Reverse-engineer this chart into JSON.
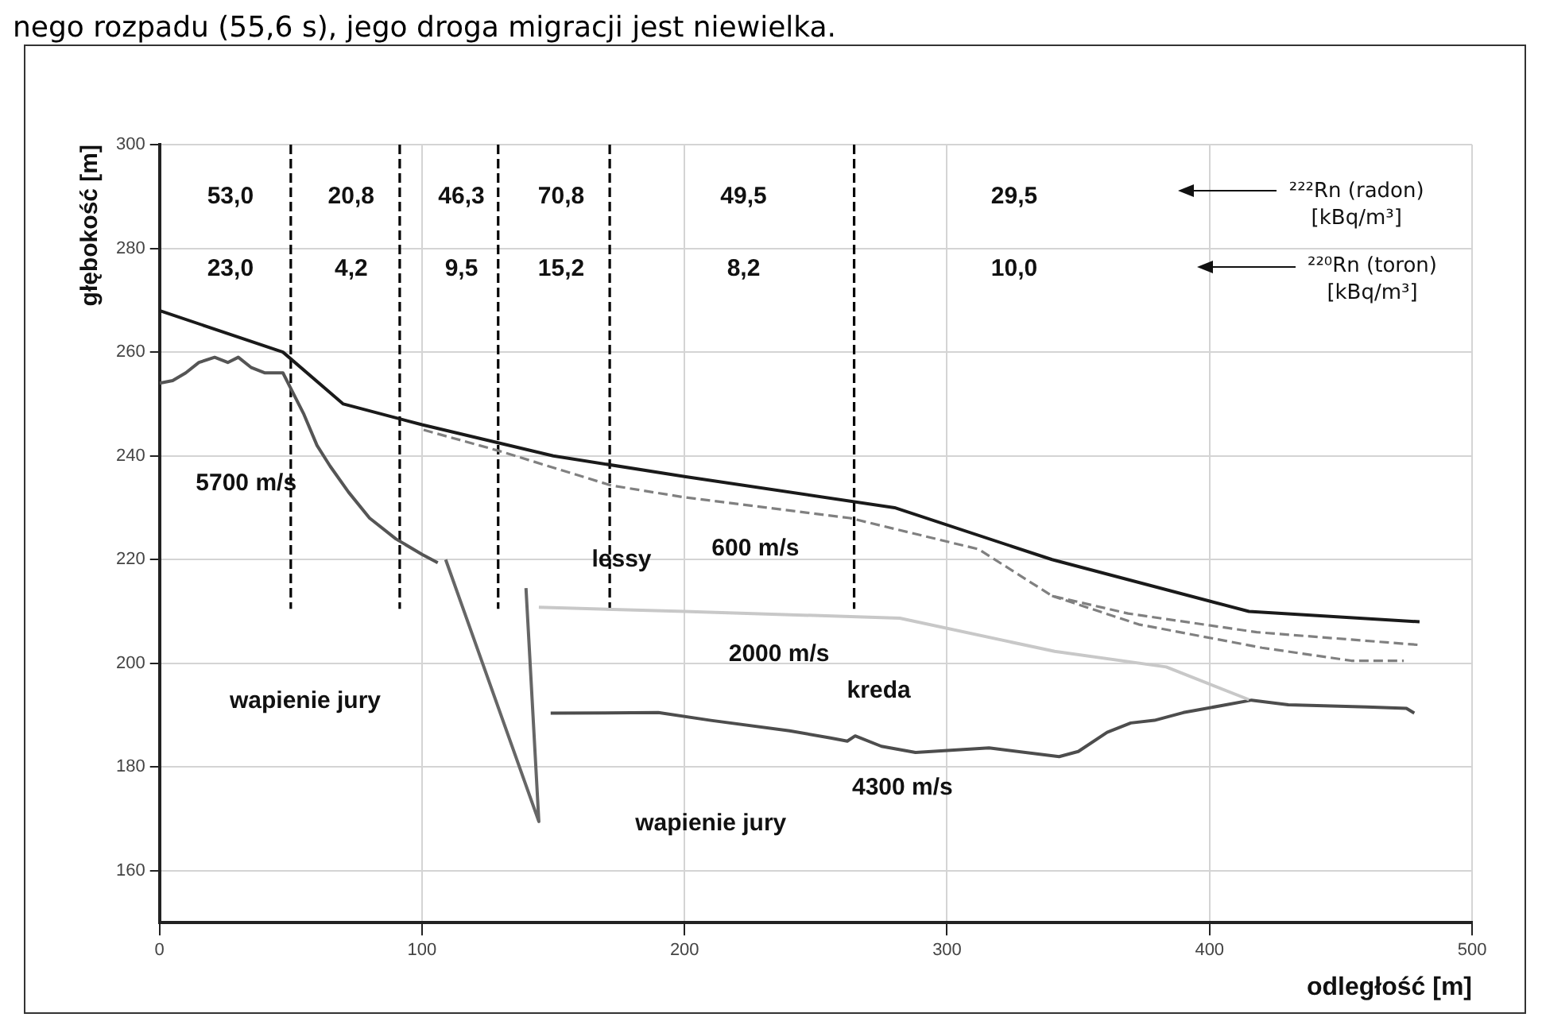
{
  "chart_data": {
    "type": "line",
    "xlabel": "odległość [m]",
    "ylabel": "głębokość [m]",
    "xlim": [
      0,
      500
    ],
    "ylim": [
      150,
      300
    ],
    "xticks": [
      0,
      100,
      200,
      300,
      400,
      500
    ],
    "yticks": [
      160,
      180,
      200,
      220,
      240,
      260,
      280,
      300
    ],
    "grid": true,
    "marker": "none",
    "legend": false,
    "series": [
      {
        "color": "#1a1a1a",
        "x": [
          0,
          47,
          70,
          100,
          150,
          200,
          280,
          340,
          415,
          480
        ],
        "values": [
          268,
          260,
          250,
          246,
          240,
          236,
          230,
          220,
          210,
          208
        ]
      },
      {
        "color": "#555555",
        "x": [
          0,
          5,
          10,
          15,
          21,
          26,
          30,
          35,
          40,
          47,
          50,
          55,
          60,
          65,
          72,
          80,
          90,
          100,
          106
        ],
        "values": [
          254,
          254.5,
          256,
          258,
          259,
          258,
          259,
          257,
          256,
          256,
          253,
          248,
          242,
          238,
          233,
          228,
          224,
          221,
          219.4
        ]
      },
      {
        "color": "#666666",
        "x": [
          109,
          144.5,
          139.6
        ],
        "values": [
          220,
          169.5,
          214.5
        ]
      },
      {
        "color": "#c8c8c8",
        "x": [
          144.5,
          200,
          282,
          341,
          383.5,
          415
        ],
        "values": [
          210.8,
          210,
          208.7,
          202.3,
          199.3,
          193
        ]
      },
      {
        "color": "#4d4d4d",
        "x": [
          149,
          190,
          210,
          240,
          255.6,
          262,
          265,
          275,
          288,
          316,
          342.7,
          350,
          361,
          370,
          379,
          390,
          397.6,
          416,
          430,
          460,
          475,
          478
        ],
        "values": [
          190.4,
          190.5,
          189,
          187,
          185.6,
          185,
          186,
          184,
          182.8,
          183.7,
          182,
          183,
          186.7,
          188.5,
          189,
          190.5,
          191.2,
          192.9,
          192,
          191.6,
          191.3,
          190.4
        ]
      },
      {
        "color": "#808080",
        "line_style": "dashed",
        "x": [
          100.6,
          129,
          172,
          200,
          263,
          312,
          340,
          369,
          418,
          481
        ],
        "values": [
          245,
          241,
          234.3,
          232,
          228,
          222,
          213,
          209.6,
          206,
          203.5
        ]
      },
      {
        "color": "#808080",
        "line_style": "dashed",
        "x": [
          340,
          373,
          420,
          454,
          474
        ],
        "values": [
          213,
          207.5,
          203,
          200.5,
          200.5
        ]
      },
      {
        "color": "#000000",
        "line_style": "dashed",
        "x": [
          50,
          50
        ],
        "values": [
          300,
          210.5
        ]
      },
      {
        "color": "#000000",
        "line_style": "dashed",
        "x": [
          91.5,
          91.5
        ],
        "values": [
          300,
          210.5
        ]
      },
      {
        "color": "#000000",
        "line_style": "dashed",
        "x": [
          129,
          129
        ],
        "values": [
          300,
          210.5
        ]
      },
      {
        "color": "#000000",
        "line_style": "dashed",
        "x": [
          171.5,
          171.5
        ],
        "values": [
          300,
          210.5
        ]
      },
      {
        "color": "#000000",
        "line_style": "dashed",
        "x": [
          264.6,
          264.6
        ],
        "values": [
          300,
          210.5
        ]
      }
    ],
    "annotations": [
      "nego rozpadu (55,6 s), jego droga migracji jest niewielka.",
      "53,0",
      "20,8",
      "46,3",
      "70,8",
      "49,5",
      "29,5",
      "23,0",
      "4,2",
      "9,5",
      "15,2",
      "8,2",
      "10,0",
      "²²²Rn (radon)\n[kBq/m³]",
      "²²⁰Rn (toron)\n[kBq/m³]",
      "5700 m/s",
      "lessy",
      "600 m/s",
      "2000 m/s",
      "kreda",
      "wapienie jury",
      "4300 m/s",
      "wapienie jury"
    ]
  }
}
